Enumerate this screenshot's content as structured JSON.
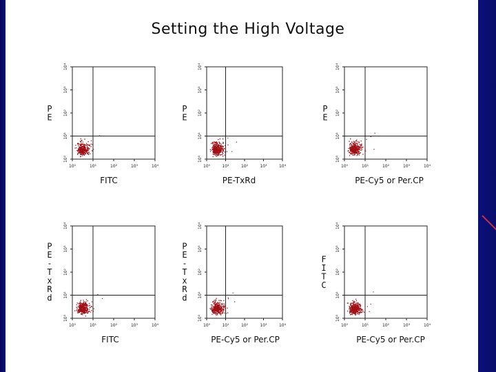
{
  "slide": {
    "title": "Setting the High Voltage",
    "colors": {
      "background": "#0b0f7a",
      "slide": "#ffffff",
      "dots": "#9e1015",
      "accent": "#c83048"
    }
  },
  "chart_data": [
    {
      "type": "scatter",
      "xlabel": "FITC",
      "ylabel": "PE",
      "x_ticks": [
        "10⁰",
        "10¹",
        "10²",
        "10³",
        "10⁴"
      ],
      "y_ticks": [
        "10⁰",
        "10¹",
        "10²",
        "10³",
        "10⁴"
      ],
      "gate_x": 10,
      "gate_y": 10,
      "xlim": [
        1,
        10000
      ],
      "ylim": [
        1,
        10000
      ],
      "log": true
    },
    {
      "type": "scatter",
      "xlabel": "PE-TxRd",
      "ylabel": "PE",
      "x_ticks": [
        "10⁰",
        "10¹",
        "10²",
        "10³",
        "10⁴"
      ],
      "y_ticks": [
        "10⁰",
        "10¹",
        "10²",
        "10³",
        "10⁴"
      ],
      "gate_x": 10,
      "gate_y": 10,
      "xlim": [
        1,
        10000
      ],
      "ylim": [
        1,
        10000
      ],
      "log": true
    },
    {
      "type": "scatter",
      "xlabel": "PE-Cy5 or Per.CP",
      "ylabel": "PE",
      "x_ticks": [
        "10⁰",
        "10¹",
        "10²",
        "10³",
        "10⁴"
      ],
      "y_ticks": [
        "10⁰",
        "10¹",
        "10²",
        "10³",
        "10⁴"
      ],
      "gate_x": 10,
      "gate_y": 10,
      "xlim": [
        1,
        10000
      ],
      "ylim": [
        1,
        10000
      ],
      "log": true
    },
    {
      "type": "scatter",
      "xlabel": "FITC",
      "ylabel": "PE-TxRd",
      "x_ticks": [
        "10⁰",
        "10¹",
        "10²",
        "10³",
        "10⁴"
      ],
      "y_ticks": [
        "10⁰",
        "10¹",
        "10²",
        "10³",
        "10⁴"
      ],
      "gate_x": 10,
      "gate_y": 10,
      "xlim": [
        1,
        10000
      ],
      "ylim": [
        1,
        10000
      ],
      "log": true
    },
    {
      "type": "scatter",
      "xlabel": "PE-Cy5 or Per.CP",
      "ylabel": "PE-TxRd",
      "x_ticks": [
        "10⁰",
        "10¹",
        "10²",
        "10³",
        "10⁴"
      ],
      "y_ticks": [
        "10⁰",
        "10¹",
        "10²",
        "10³",
        "10⁴"
      ],
      "gate_x": 10,
      "gate_y": 10,
      "xlim": [
        1,
        10000
      ],
      "ylim": [
        1,
        10000
      ],
      "log": true
    },
    {
      "type": "scatter",
      "xlabel": "PE-Cy5 or Per.CP",
      "ylabel": "FITC",
      "x_ticks": [
        "10⁰",
        "10¹",
        "10²",
        "10³",
        "10⁴"
      ],
      "y_ticks": [
        "10⁰",
        "10¹",
        "10²",
        "10³",
        "10⁴"
      ],
      "gate_x": 10,
      "gate_y": 10,
      "xlim": [
        1,
        10000
      ],
      "ylim": [
        1,
        10000
      ],
      "log": true
    }
  ]
}
